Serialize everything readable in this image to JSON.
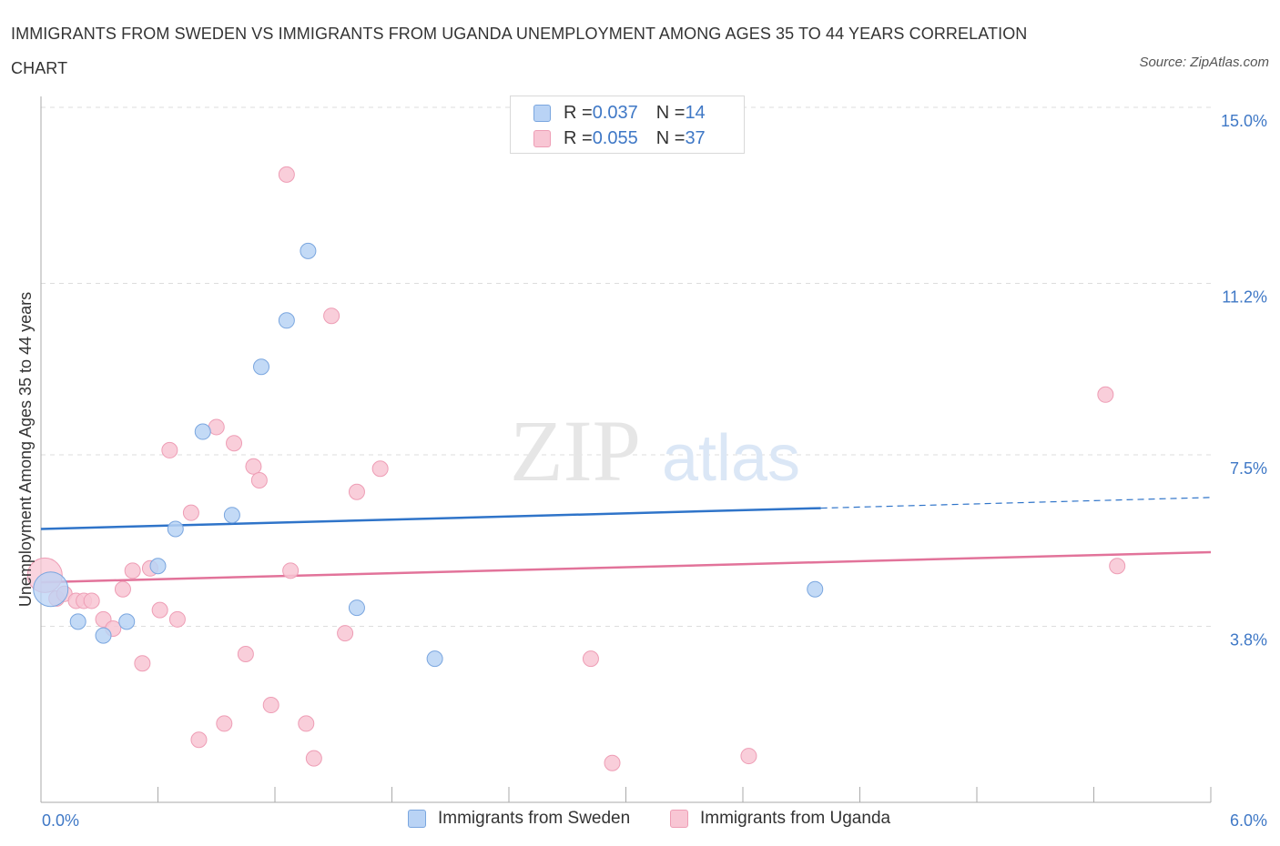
{
  "title": "IMMIGRANTS FROM SWEDEN VS IMMIGRANTS FROM UGANDA UNEMPLOYMENT AMONG AGES 35 TO 44 YEARS CORRELATION CHART",
  "source": "Source: ZipAtlas.com",
  "watermark": {
    "zip": "ZIP",
    "atlas": "atlas"
  },
  "legend_top": [
    {
      "r_label": "R = ",
      "r_value": "0.037",
      "n_label": "N = ",
      "n_value": "14"
    },
    {
      "r_label": "R = ",
      "r_value": "0.055",
      "n_label": "N = ",
      "n_value": "37"
    }
  ],
  "colors": {
    "sweden_fill": "#b9d3f5",
    "sweden_stroke": "#7aa6df",
    "sweden_line": "#2f74c9",
    "uganda_fill": "#f8c6d4",
    "uganda_stroke": "#ee9db5",
    "uganda_line": "#e2739a",
    "grid": "#dddddd",
    "tick_label": "#3f78c6"
  },
  "chart_data": {
    "type": "scatter",
    "title": "IMMIGRANTS FROM SWEDEN VS IMMIGRANTS FROM UGANDA UNEMPLOYMENT AMONG AGES 35 TO 44 YEARS CORRELATION CHART",
    "xlabel": "",
    "ylabel": "Unemployment Among Ages 35 to 44 years",
    "xlim": [
      0,
      6
    ],
    "ylim": [
      0,
      15
    ],
    "x_tick_labels": [
      "0.0%",
      "6.0%"
    ],
    "y_ticks": [
      3.8,
      7.5,
      11.2,
      15.0
    ],
    "y_tick_labels": [
      "3.8%",
      "7.5%",
      "11.2%",
      "15.0%"
    ],
    "grid": true,
    "legend_position": "top-center",
    "series": [
      {
        "name": "Immigrants from Sweden",
        "R": 0.037,
        "N": 14,
        "points": [
          {
            "x": 0.05,
            "y": 4.6,
            "big": true
          },
          {
            "x": 0.19,
            "y": 3.9
          },
          {
            "x": 0.32,
            "y": 3.6
          },
          {
            "x": 0.44,
            "y": 3.9
          },
          {
            "x": 0.6,
            "y": 5.1
          },
          {
            "x": 0.69,
            "y": 5.9
          },
          {
            "x": 0.83,
            "y": 8.0
          },
          {
            "x": 0.98,
            "y": 6.2
          },
          {
            "x": 1.13,
            "y": 9.4
          },
          {
            "x": 1.26,
            "y": 10.4
          },
          {
            "x": 1.37,
            "y": 11.9
          },
          {
            "x": 1.62,
            "y": 4.2
          },
          {
            "x": 2.02,
            "y": 3.1
          },
          {
            "x": 3.97,
            "y": 4.6
          }
        ],
        "trend": {
          "x0": 0,
          "y0": 5.9,
          "x1": 4.0,
          "y1": 6.35,
          "dash_x1": 6.0,
          "dash_y1": 6.58
        }
      },
      {
        "name": "Immigrants from Uganda",
        "R": 0.055,
        "N": 37,
        "points": [
          {
            "x": 0.02,
            "y": 4.9,
            "big": true
          },
          {
            "x": 0.08,
            "y": 4.4
          },
          {
            "x": 0.12,
            "y": 4.5
          },
          {
            "x": 0.18,
            "y": 4.35
          },
          {
            "x": 0.22,
            "y": 4.35
          },
          {
            "x": 0.26,
            "y": 4.35
          },
          {
            "x": 0.32,
            "y": 3.95
          },
          {
            "x": 0.37,
            "y": 3.75
          },
          {
            "x": 0.42,
            "y": 4.6
          },
          {
            "x": 0.47,
            "y": 5.0
          },
          {
            "x": 0.52,
            "y": 3.0
          },
          {
            "x": 0.56,
            "y": 5.05
          },
          {
            "x": 0.61,
            "y": 4.15
          },
          {
            "x": 0.66,
            "y": 7.6
          },
          {
            "x": 0.7,
            "y": 3.95
          },
          {
            "x": 0.77,
            "y": 6.25
          },
          {
            "x": 0.81,
            "y": 1.35
          },
          {
            "x": 0.9,
            "y": 8.1
          },
          {
            "x": 0.94,
            "y": 1.7
          },
          {
            "x": 0.99,
            "y": 7.75
          },
          {
            "x": 1.05,
            "y": 3.2
          },
          {
            "x": 1.09,
            "y": 7.25
          },
          {
            "x": 1.12,
            "y": 6.95
          },
          {
            "x": 1.18,
            "y": 2.1
          },
          {
            "x": 1.26,
            "y": 13.55
          },
          {
            "x": 1.28,
            "y": 5.0
          },
          {
            "x": 1.36,
            "y": 1.7
          },
          {
            "x": 1.4,
            "y": 0.95
          },
          {
            "x": 1.49,
            "y": 10.5
          },
          {
            "x": 1.56,
            "y": 3.65
          },
          {
            "x": 1.62,
            "y": 6.7
          },
          {
            "x": 1.74,
            "y": 7.2
          },
          {
            "x": 2.93,
            "y": 0.85
          },
          {
            "x": 2.82,
            "y": 3.1
          },
          {
            "x": 3.63,
            "y": 1.0
          },
          {
            "x": 5.46,
            "y": 8.8
          },
          {
            "x": 5.52,
            "y": 5.1
          }
        ],
        "trend": {
          "x0": 0,
          "y0": 4.75,
          "x1": 6.0,
          "y1": 5.4
        }
      }
    ]
  }
}
